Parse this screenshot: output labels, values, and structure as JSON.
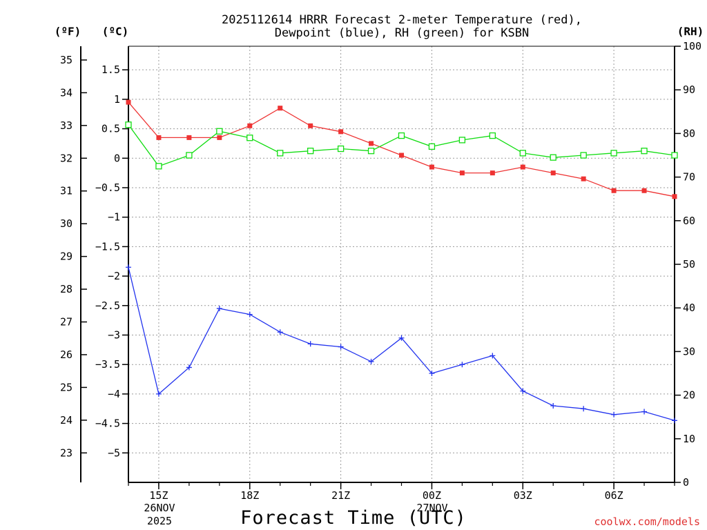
{
  "title": {
    "line1": "2025112614 HRRR Forecast 2-meter Temperature (red),",
    "line2": "Dewpoint (blue), RH (green) for KSBN"
  },
  "units": {
    "fahrenheit": "(ºF)",
    "celsius": "(ºC)",
    "rh": "(RH)"
  },
  "xlabel": "Forecast Time (UTC)",
  "date_labels": [
    "26NOV",
    "2025",
    "27NOV"
  ],
  "watermark": "coolwx.com/models",
  "colors": {
    "temperature": "#ee3333",
    "dewpoint": "#2233ee",
    "rh": "#11dd11",
    "axis": "#000000"
  },
  "chart_data": {
    "type": "line",
    "x": [
      14,
      15,
      16,
      17,
      18,
      19,
      20,
      21,
      22,
      23,
      24,
      25,
      26,
      27,
      28,
      29,
      30,
      31,
      32
    ],
    "xlim": [
      14,
      32
    ],
    "x_ticks": [
      {
        "value": 15,
        "label": "15Z"
      },
      {
        "value": 18,
        "label": "18Z"
      },
      {
        "value": 21,
        "label": "21Z"
      },
      {
        "value": 24,
        "label": "00Z"
      },
      {
        "value": 27,
        "label": "03Z"
      },
      {
        "value": 30,
        "label": "06Z"
      }
    ],
    "y_celsius": {
      "range": [
        -5.5,
        1.9
      ],
      "ticks": [
        -5,
        -4.5,
        -4,
        -3.5,
        -3,
        -2.5,
        -2,
        -1.5,
        -1,
        -0.5,
        0,
        0.5,
        1,
        1.5
      ],
      "labels": [
        "−5",
        "−4.5",
        "−4",
        "−3.5",
        "−3",
        "−2.5",
        "−2",
        "−1.5",
        "−1",
        "−0.5",
        "0",
        "0.5",
        "1",
        "1.5"
      ]
    },
    "y_fahrenheit": {
      "ticks": [
        23,
        24,
        25,
        26,
        27,
        28,
        29,
        30,
        31,
        32,
        33,
        34,
        35
      ]
    },
    "y_rh": {
      "range": [
        0,
        100
      ],
      "ticks": [
        0,
        10,
        20,
        30,
        40,
        50,
        60,
        70,
        80,
        90,
        100
      ]
    },
    "series": [
      {
        "name": "Temperature",
        "unit": "C",
        "marker": "filled-square",
        "values": [
          0.95,
          0.35,
          0.35,
          0.35,
          0.55,
          0.85,
          0.55,
          0.45,
          0.25,
          0.05,
          -0.15,
          -0.25,
          -0.25,
          -0.15,
          -0.25,
          -0.35,
          -0.55,
          -0.55,
          -0.65
        ]
      },
      {
        "name": "Dewpoint",
        "unit": "C",
        "marker": "plus",
        "values": [
          -1.85,
          -4.0,
          -3.55,
          -2.55,
          -2.65,
          -2.95,
          -3.15,
          -3.2,
          -3.45,
          -3.05,
          -3.65,
          -3.5,
          -3.35,
          -3.95,
          -4.2,
          -4.25,
          -4.35,
          -4.3,
          -4.45
        ]
      },
      {
        "name": "RH",
        "unit": "%",
        "marker": "open-square",
        "values": [
          82,
          72.5,
          75,
          80.5,
          79,
          75.5,
          76,
          76.5,
          76,
          79.5,
          77,
          78.5,
          79.5,
          75.5,
          74.5,
          75,
          75.5,
          76,
          75
        ]
      }
    ]
  }
}
